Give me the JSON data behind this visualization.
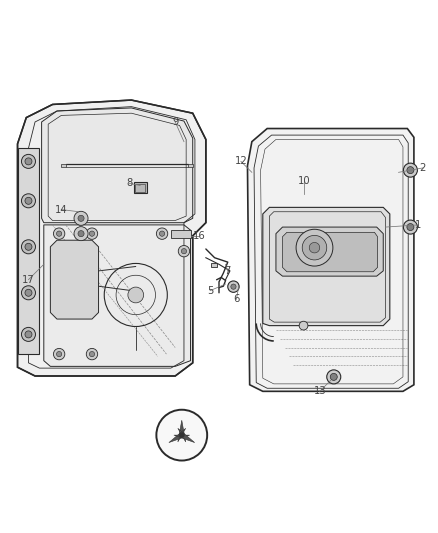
{
  "bg_color": "#ffffff",
  "line_color": "#2a2a2a",
  "gray_color": "#888888",
  "light_gray": "#cccccc",
  "label_color": "#444444",
  "fig_width": 4.38,
  "fig_height": 5.33,
  "dpi": 100,
  "labels_info": [
    [
      1,
      0.955,
      0.595,
      0.88,
      0.59
    ],
    [
      2,
      0.965,
      0.725,
      0.91,
      0.715
    ],
    [
      5,
      0.48,
      0.445,
      0.515,
      0.46
    ],
    [
      6,
      0.54,
      0.425,
      0.545,
      0.455
    ],
    [
      7,
      0.52,
      0.49,
      0.515,
      0.505
    ],
    [
      8,
      0.295,
      0.69,
      0.32,
      0.685
    ],
    [
      9,
      0.4,
      0.83,
      0.42,
      0.785
    ],
    [
      10,
      0.695,
      0.695,
      0.695,
      0.665
    ],
    [
      12,
      0.55,
      0.74,
      0.575,
      0.715
    ],
    [
      13,
      0.73,
      0.215,
      0.755,
      0.24
    ],
    [
      14,
      0.14,
      0.63,
      0.18,
      0.625
    ],
    [
      16,
      0.455,
      0.57,
      0.435,
      0.57
    ],
    [
      17,
      0.065,
      0.47,
      0.1,
      0.505
    ]
  ]
}
